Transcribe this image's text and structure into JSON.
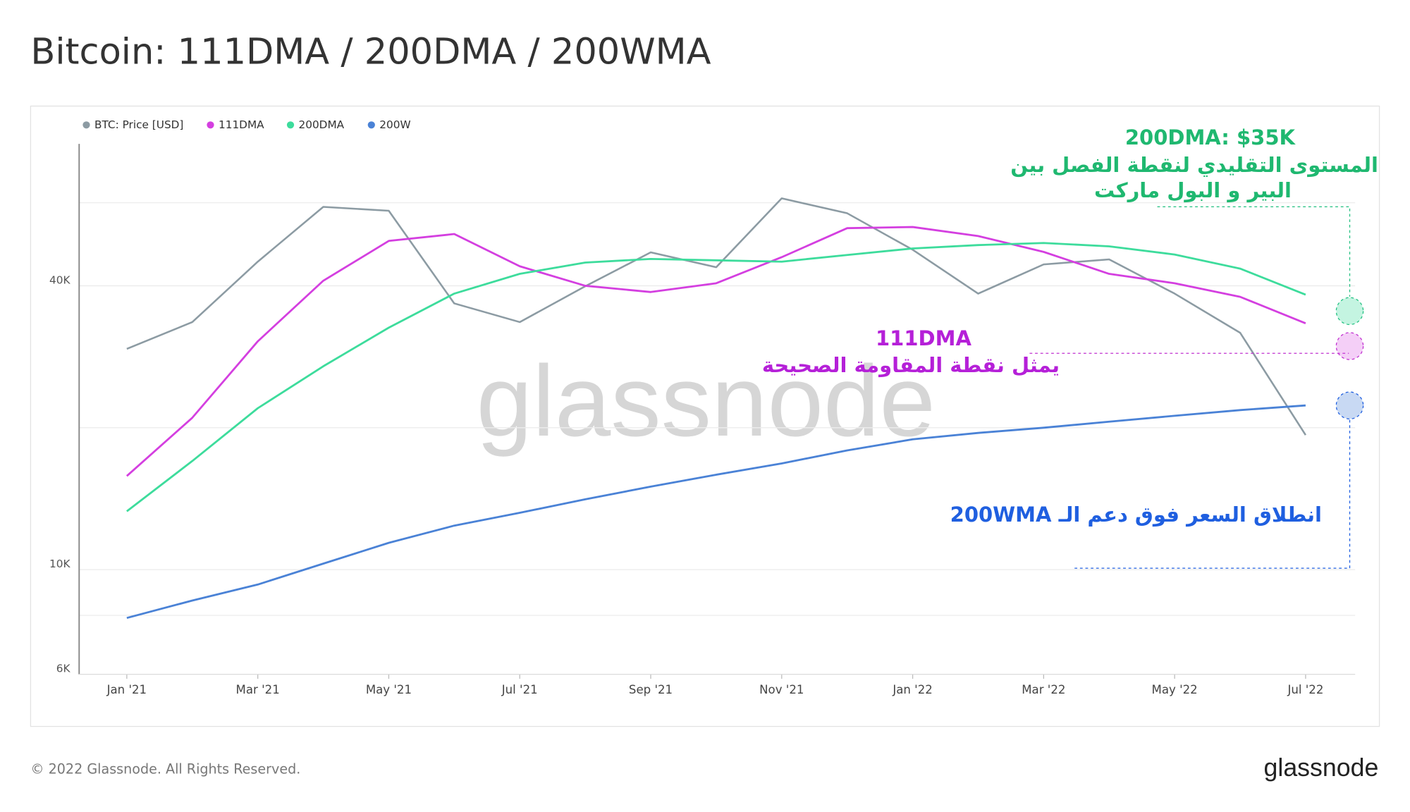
{
  "chart_data": {
    "type": "line",
    "title": "Bitcoin: 111DMA / 200DMA / 200WMA",
    "x": [
      "2021-01",
      "2021-02",
      "2021-03",
      "2021-04",
      "2021-05",
      "2021-06",
      "2021-07",
      "2021-08",
      "2021-09",
      "2021-10",
      "2021-11",
      "2021-12",
      "2022-01",
      "2022-02",
      "2022-03",
      "2022-04",
      "2022-05",
      "2022-06",
      "2022-07"
    ],
    "xticks": [
      {
        "value": "2021-01",
        "label": "Jan '21"
      },
      {
        "value": "2021-03",
        "label": "Mar '21"
      },
      {
        "value": "2021-05",
        "label": "May '21"
      },
      {
        "value": "2021-07",
        "label": "Jul '21"
      },
      {
        "value": "2021-09",
        "label": "Sep '21"
      },
      {
        "value": "2021-11",
        "label": "Nov '21"
      },
      {
        "value": "2022-01",
        "label": "Jan '22"
      },
      {
        "value": "2022-03",
        "label": "Mar '22"
      },
      {
        "value": "2022-05",
        "label": "May '22"
      },
      {
        "value": "2022-07",
        "label": "Jul '22"
      }
    ],
    "ylim": [
      6000,
      80000
    ],
    "log_scale": true,
    "grid": true,
    "yticks": [
      {
        "value": 6000,
        "label": "6K"
      },
      {
        "value": 8000,
        "label": null
      },
      {
        "value": 10000,
        "label": "10K"
      },
      {
        "value": 20000,
        "label": null
      },
      {
        "value": 40000,
        "label": "40K"
      },
      {
        "value": 60000,
        "label": null
      }
    ],
    "legend_position": "top-left",
    "series": [
      {
        "name": "BTC: Price [USD]",
        "color": "#8c9ba3",
        "values": [
          29400,
          33500,
          45000,
          58800,
          57700,
          36700,
          33500,
          39900,
          47100,
          43800,
          61300,
          57000,
          47700,
          38500,
          44400,
          45500,
          38500,
          31800,
          19300
        ]
      },
      {
        "name": "111DMA",
        "color": "#d43fe0",
        "values": [
          15800,
          21000,
          30500,
          41000,
          49800,
          51500,
          44000,
          40000,
          38800,
          40500,
          46000,
          53000,
          53300,
          51000,
          47200,
          42400,
          40500,
          37900,
          33300
        ]
      },
      {
        "name": "200DMA",
        "color": "#3ddc9c",
        "values": [
          13300,
          17000,
          22000,
          27000,
          32600,
          38500,
          42400,
          44800,
          45600,
          45300,
          45000,
          46500,
          48000,
          48800,
          49300,
          48500,
          46600,
          43500,
          38300
        ]
      },
      {
        "name": "200W",
        "color": "#4a82d6",
        "values": [
          7900,
          8600,
          9300,
          10300,
          11400,
          12400,
          13200,
          14100,
          15000,
          15900,
          16800,
          17900,
          18900,
          19500,
          20000,
          20600,
          21200,
          21800,
          22300
        ]
      }
    ],
    "annotations": [
      "200DMA: $35K",
      "المستوى التقليدي لنقطة الفصل بين",
      "البير و البول ماركت",
      "111DMA",
      "يمثل نقطة المقاومة الصحيحة",
      "انطلاق السعر فوق دعم الـ 200WMA"
    ],
    "watermark": "glassnode",
    "footer": "© 2022 Glassnode. All Rights Reserved.",
    "logo": "glassnode"
  }
}
